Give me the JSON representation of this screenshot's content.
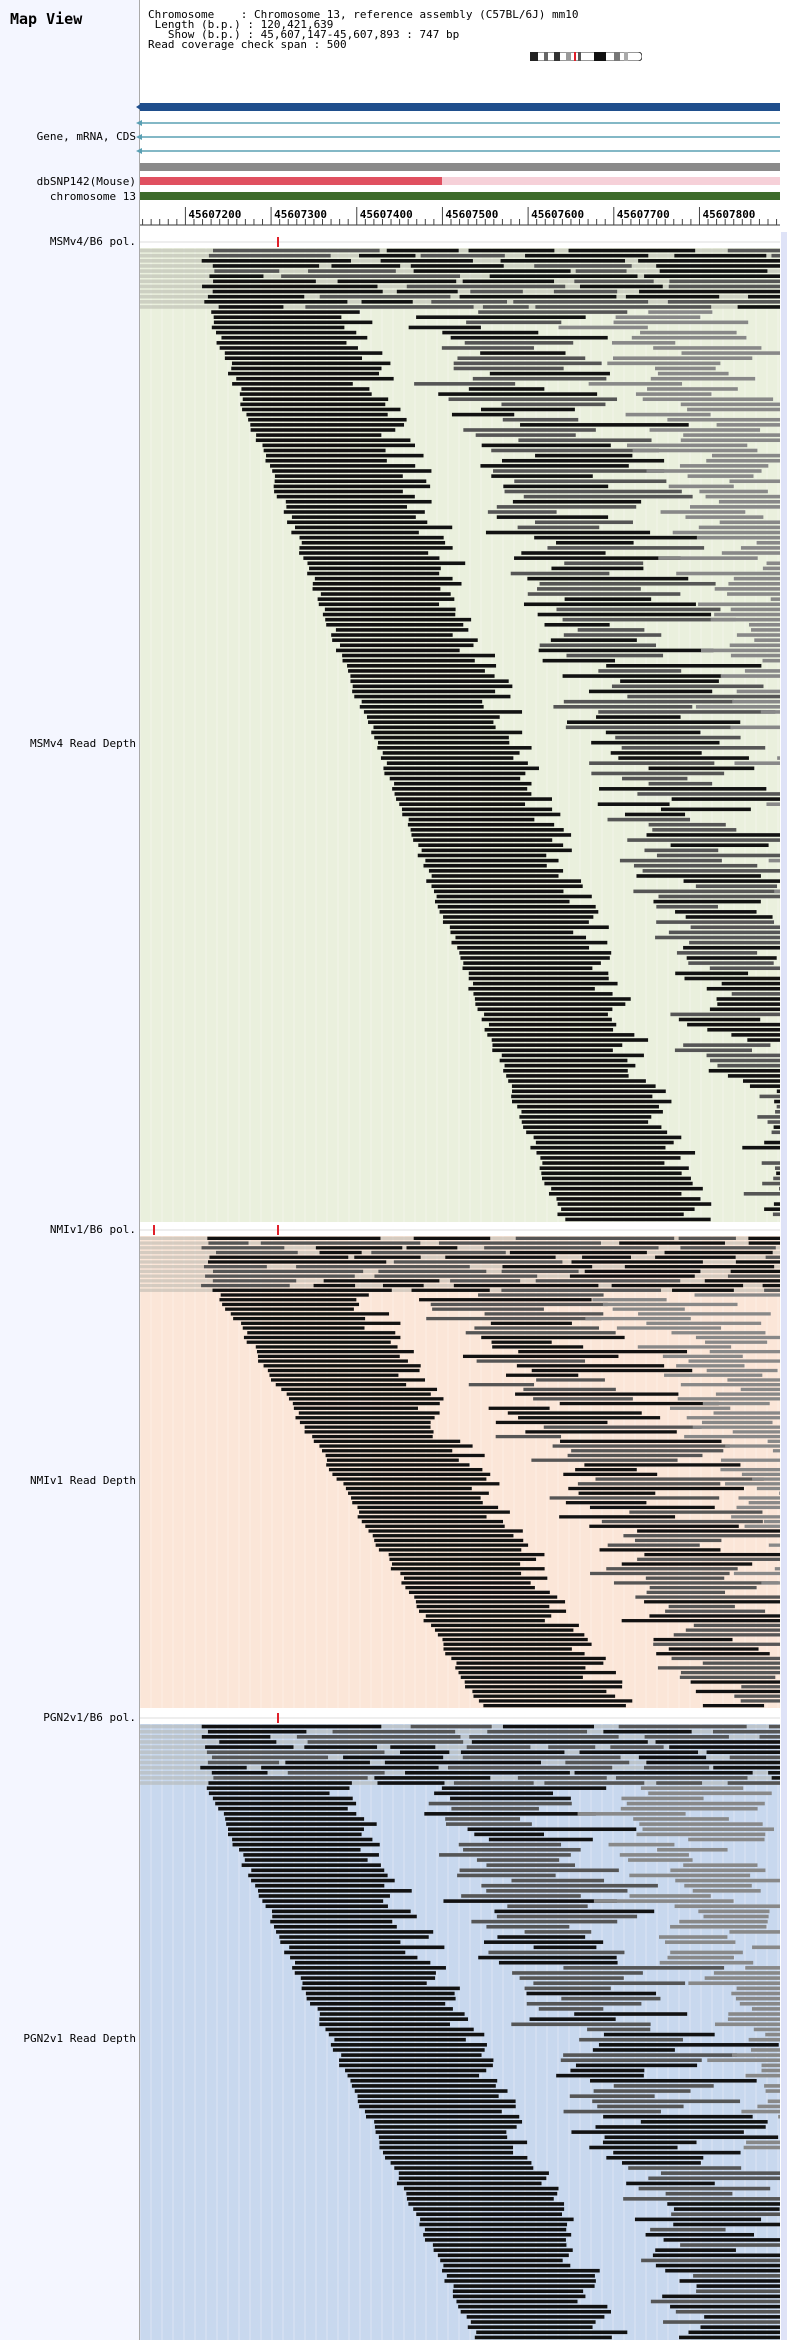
{
  "title": "Map View",
  "info": {
    "line1": "Chromosome    : Chromosome 13, reference assembly (C57BL/6J) mm10",
    "line2": " Length (b.p.) : 120,421,639",
    "line3": "   Show (b.p.) : 45,607,147-45,607,893 : 747 bp",
    "line4": "Read coverage check span : 500"
  },
  "tracks": {
    "gene": "Gene, mRNA, CDS",
    "dbsnp": "dbSNP142(Mouse)",
    "chromosome": "chromosome 13",
    "msm_pol": "MSMv4/B6 pol.",
    "msm_depth": "MSMv4 Read Depth",
    "nmi_pol": "NMIv1/B6 pol.",
    "nmi_depth": "NMIv1 Read Depth",
    "pgn_pol": "PGN2v1/B6 pol.",
    "pgn_depth": "PGN2v1 Read Depth"
  },
  "ruler": {
    "ticks": [
      "45607200",
      "45607300",
      "45607400",
      "45607500",
      "45607600",
      "45607700",
      "45607800"
    ]
  },
  "colors": {
    "gene_bar": "#1f4e8c",
    "transcript": "#5aa0b4",
    "snp": "#e05060",
    "snp_bg": "#f6d0d8",
    "chromosome_bar": "#3d6b2a",
    "msm_bg": "#eaf0dd",
    "nmi_bg": "#fbe6d8",
    "pgn_bg": "#c8d8ee",
    "read_dark": "#111111",
    "read_mid": "#555555",
    "read_light": "#888888"
  },
  "icons": {
    "ideogram": "chromosome-ideogram-icon",
    "arrow": "left-arrow-icon"
  }
}
